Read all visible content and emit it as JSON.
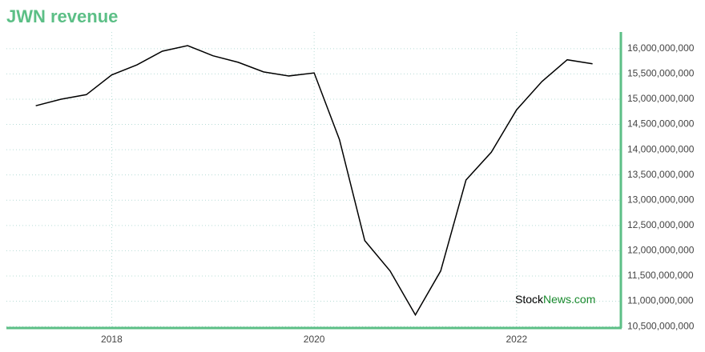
{
  "chart_data": {
    "type": "line",
    "title": "JWN revenue",
    "watermark": {
      "prefix": "Stock",
      "suffix": "News.com"
    },
    "x": [
      2017.25,
      2017.5,
      2017.75,
      2018.0,
      2018.25,
      2018.5,
      2018.75,
      2019.0,
      2019.25,
      2019.5,
      2019.75,
      2020.0,
      2020.25,
      2020.5,
      2020.75,
      2021.0,
      2021.25,
      2021.5,
      2021.75,
      2022.0,
      2022.25,
      2022.5,
      2022.75
    ],
    "series": [
      {
        "color": "#000000",
        "values": [
          14870000000,
          15000000000,
          15090000000,
          15480000000,
          15680000000,
          15950000000,
          16060000000,
          15860000000,
          15730000000,
          15540000000,
          15460000000,
          15520000000,
          14200000000,
          12200000000,
          11600000000,
          10730000000,
          11600000000,
          13400000000,
          13950000000,
          14790000000,
          15350000000,
          15780000000,
          15700000000
        ]
      }
    ],
    "xlim": [
      2016.96,
      2023.03
    ],
    "xticks": [
      2018,
      2020,
      2022
    ],
    "ylim": [
      10470000000,
      16330000000
    ],
    "yticks": [
      {
        "value": 10500000000,
        "label": "10,500,000,000"
      },
      {
        "value": 11000000000,
        "label": "11,000,000,000"
      },
      {
        "value": 11500000000,
        "label": "11,500,000,000"
      },
      {
        "value": 12000000000,
        "label": "12,000,000,000"
      },
      {
        "value": 12500000000,
        "label": "12,500,000,000"
      },
      {
        "value": 13000000000,
        "label": "13,000,000,000"
      },
      {
        "value": 13500000000,
        "label": "13,500,000,000"
      },
      {
        "value": 14000000000,
        "label": "14,000,000,000"
      },
      {
        "value": 14500000000,
        "label": "14,500,000,000"
      },
      {
        "value": 15000000000,
        "label": "15,000,000,000"
      },
      {
        "value": 15500000000,
        "label": "15,500,000,000"
      },
      {
        "value": 16000000000,
        "label": "16,000,000,000"
      }
    ],
    "grid": true,
    "accent_color": "#5cbf86"
  }
}
